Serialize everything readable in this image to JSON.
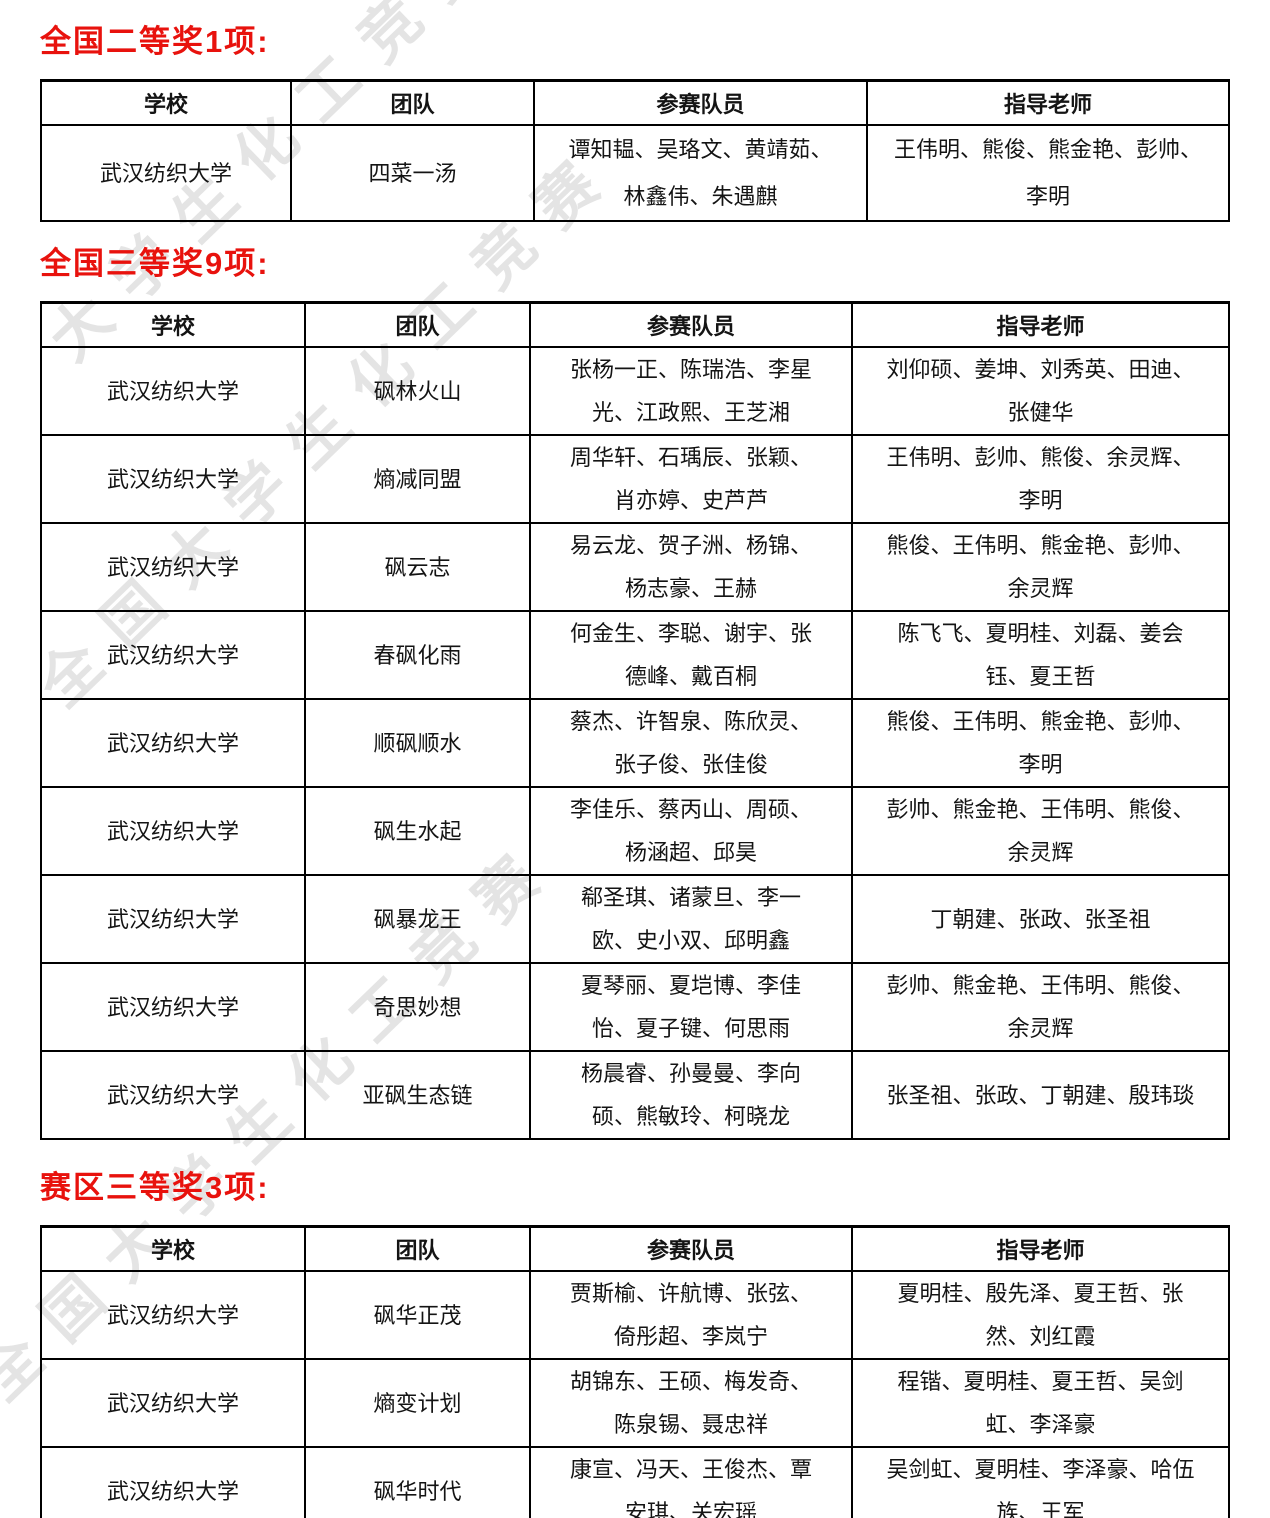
{
  "page": {
    "background": "#ffffff",
    "accent_red": "#e8120d"
  },
  "watermark": {
    "text": "全国大学生化工竞赛",
    "text_short": "大学生化工竞赛",
    "color": "#cfcfcf"
  },
  "sections": [
    {
      "heading": "全国二等奖1项:",
      "headers": [
        "学校",
        "团队",
        "参赛队员",
        "指导老师"
      ],
      "rows": [
        {
          "school": "武汉纺织大学",
          "team": "四菜一汤",
          "members": "谭知韫、吴珞文、黄靖茹、林鑫伟、朱遇麒",
          "advisors": "王伟明、熊俊、熊金艳、彭帅、李明"
        }
      ]
    },
    {
      "heading": "全国三等奖9项:",
      "headers": [
        "学校",
        "团队",
        "参赛队员",
        "指导老师"
      ],
      "rows": [
        {
          "school": "武汉纺织大学",
          "team": "砜林火山",
          "members": "张杨一正、陈瑞浩、李星光、江政熙、王芝湘",
          "advisors": "刘仰硕、姜坤、刘秀英、田迪、张健华"
        },
        {
          "school": "武汉纺织大学",
          "team": "熵减同盟",
          "members": "周华轩、石瑀辰、张颖、肖亦婷、史芦芦",
          "advisors": "王伟明、彭帅、熊俊、余灵辉、李明"
        },
        {
          "school": "武汉纺织大学",
          "team": "砜云志",
          "members": "易云龙、贺子洲、杨锦、杨志豪、王赫",
          "advisors": "熊俊、王伟明、熊金艳、彭帅、余灵辉"
        },
        {
          "school": "武汉纺织大学",
          "team": "春砜化雨",
          "members": "何金生、李聪、谢宇、张德峰、戴百桐",
          "advisors": "陈飞飞、夏明桂、刘磊、姜会钰、夏王哲"
        },
        {
          "school": "武汉纺织大学",
          "team": "顺砜顺水",
          "members": "蔡杰、许智泉、陈欣灵、张子俊、张佳俊",
          "advisors": "熊俊、王伟明、熊金艳、彭帅、李明"
        },
        {
          "school": "武汉纺织大学",
          "team": "砜生水起",
          "members": "李佳乐、蔡丙山、周硕、杨涵超、邱昊",
          "advisors": "彭帅、熊金艳、王伟明、熊俊、余灵辉"
        },
        {
          "school": "武汉纺织大学",
          "team": "砜暴龙王",
          "members": "郗圣琪、诸蒙旦、李一欧、史小双、邱明鑫",
          "advisors": "丁朝建、张政、张圣祖"
        },
        {
          "school": "武汉纺织大学",
          "team": "奇思妙想",
          "members": "夏琴丽、夏垲博、李佳怡、夏子键、何思雨",
          "advisors": "彭帅、熊金艳、王伟明、熊俊、余灵辉"
        },
        {
          "school": "武汉纺织大学",
          "team": "亚砜生态链",
          "members": "杨晨睿、孙曼曼、李向硕、熊敏玲、柯晓龙",
          "advisors": "张圣祖、张政、丁朝建、殷玮琰"
        }
      ]
    },
    {
      "heading": "赛区三等奖3项:",
      "headers": [
        "学校",
        "团队",
        "参赛队员",
        "指导老师"
      ],
      "rows": [
        {
          "school": "武汉纺织大学",
          "team": "砜华正茂",
          "members": "贾斯榆、许航博、张弦、倚彤超、李岚宁",
          "advisors": "夏明桂、殷先泽、夏王哲、张然、刘红霞"
        },
        {
          "school": "武汉纺织大学",
          "team": "熵变计划",
          "members": "胡锦东、王硕、梅发奇、陈泉锡、聂忠祥",
          "advisors": "程锴、夏明桂、夏王哲、吴剑虹、李泽豪"
        },
        {
          "school": "武汉纺织大学",
          "team": "砜华时代",
          "members": "康宣、冯天、王俊杰、覃安琪、关宏瑶",
          "advisors": "吴剑虹、夏明桂、李泽豪、哈伍族、王军"
        }
      ]
    }
  ]
}
